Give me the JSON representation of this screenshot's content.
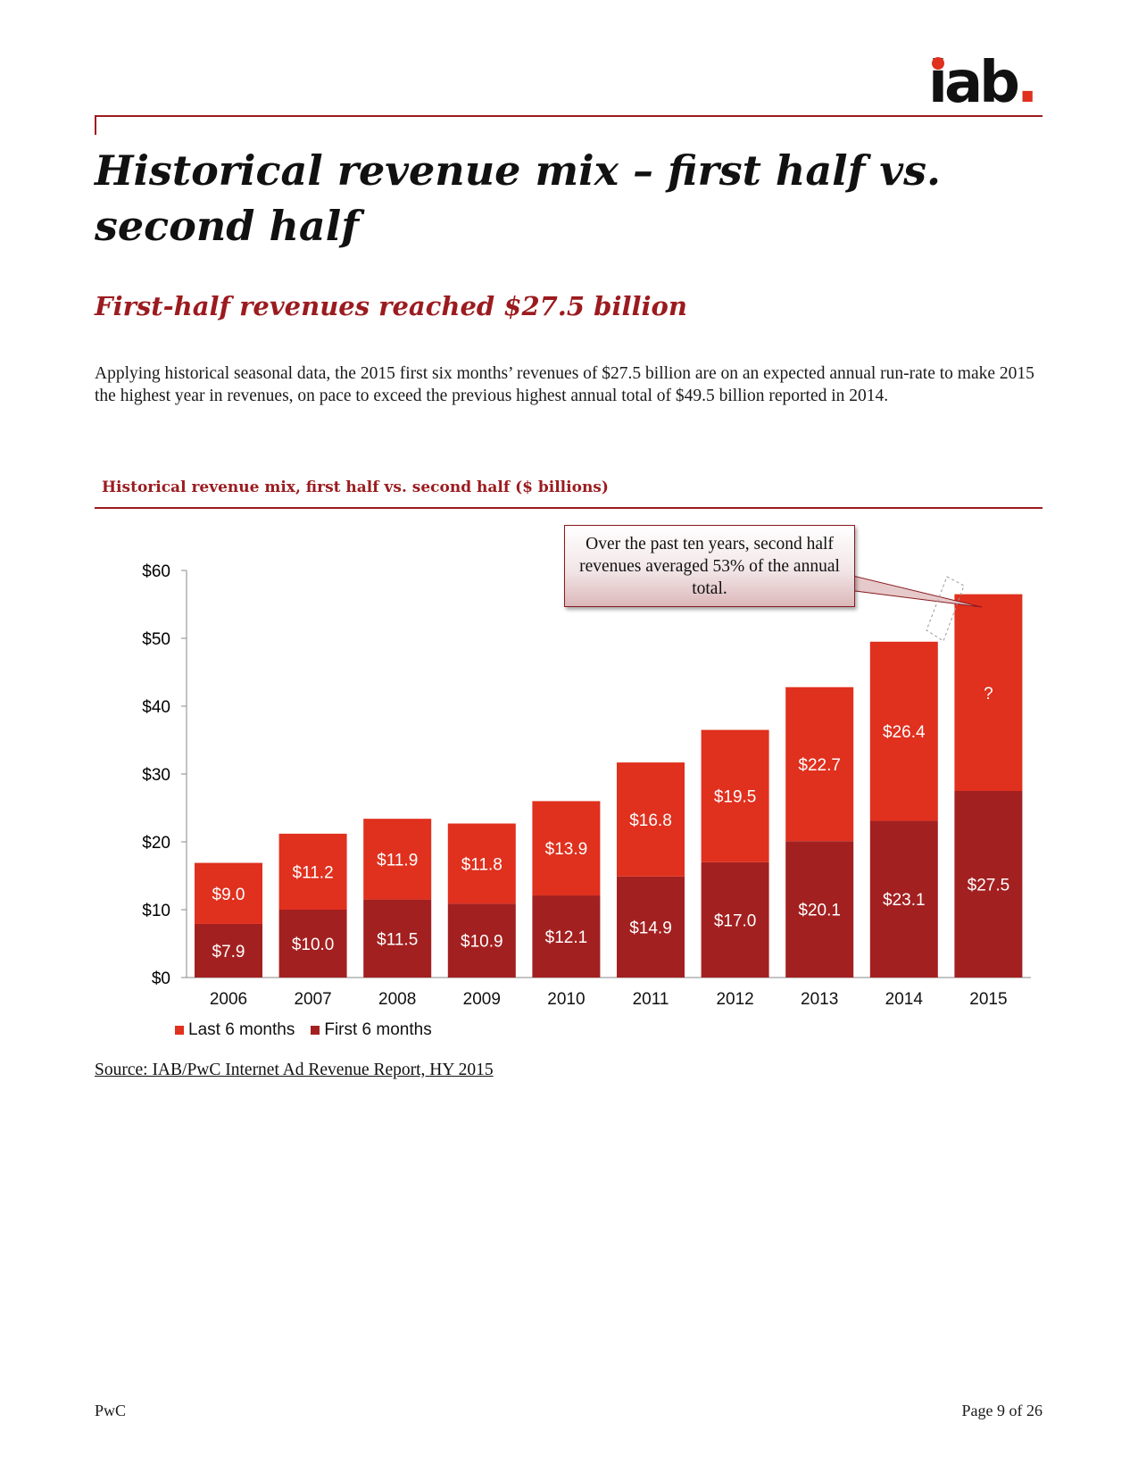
{
  "logo": {
    "text_main": "iab",
    "text_dot": ".",
    "colors": {
      "text": "#111111",
      "dot": "#e0301e"
    }
  },
  "title": "Historical revenue mix – first half vs. second half",
  "subtitle": "First-half revenues reached $27.5 billion",
  "body": "Applying historical seasonal data, the 2015 first six months’ revenues of $27.5 billion are on an expected annual run-rate to make 2015 the highest year in revenues, on pace to exceed the previous highest annual total of $49.5 billion reported in 2014.",
  "chart_heading": "Historical revenue mix, first half vs. second half ($ billions)",
  "callout": "Over the past ten years, second half revenues averaged 53% of the annual total.",
  "source": "Source: IAB/PwC Internet Ad Revenue Report, HY 2015",
  "footer": {
    "left": "PwC",
    "right": "Page 9 of 26"
  },
  "colors": {
    "accent": "#9b1b1f",
    "last6": "#e0301e",
    "first6": "#a32020"
  },
  "chart_data": {
    "type": "bar",
    "stacked": true,
    "categories": [
      "2006",
      "2007",
      "2008",
      "2009",
      "2010",
      "2011",
      "2012",
      "2013",
      "2014",
      "2015"
    ],
    "series": [
      {
        "name": "First 6 months",
        "color": "#a32020",
        "values": [
          7.9,
          10.0,
          11.5,
          10.9,
          12.1,
          14.9,
          17.0,
          20.1,
          23.1,
          27.5
        ],
        "labels": [
          "$7.9",
          "$10.0",
          "$11.5",
          "$10.9",
          "$12.1",
          "$14.9",
          "$17.0",
          "$20.1",
          "$23.1",
          "$27.5"
        ]
      },
      {
        "name": "Last 6 months",
        "color": "#e0301e",
        "values": [
          9.0,
          11.2,
          11.9,
          11.8,
          13.9,
          16.8,
          19.5,
          22.7,
          26.4,
          29.0
        ],
        "labels": [
          "$9.0",
          "$11.2",
          "$11.9",
          "$11.8",
          "$13.9",
          "$16.8",
          "$19.5",
          "$22.7",
          "$26.4",
          "?"
        ]
      }
    ],
    "y_ticks": [
      "$0",
      "$10",
      "$20",
      "$30",
      "$40",
      "$50",
      "$60"
    ],
    "ylim": [
      0,
      60
    ],
    "grid": false,
    "legend_position": "bottom-left",
    "legend": [
      "Last 6 months",
      "First 6 months"
    ]
  }
}
